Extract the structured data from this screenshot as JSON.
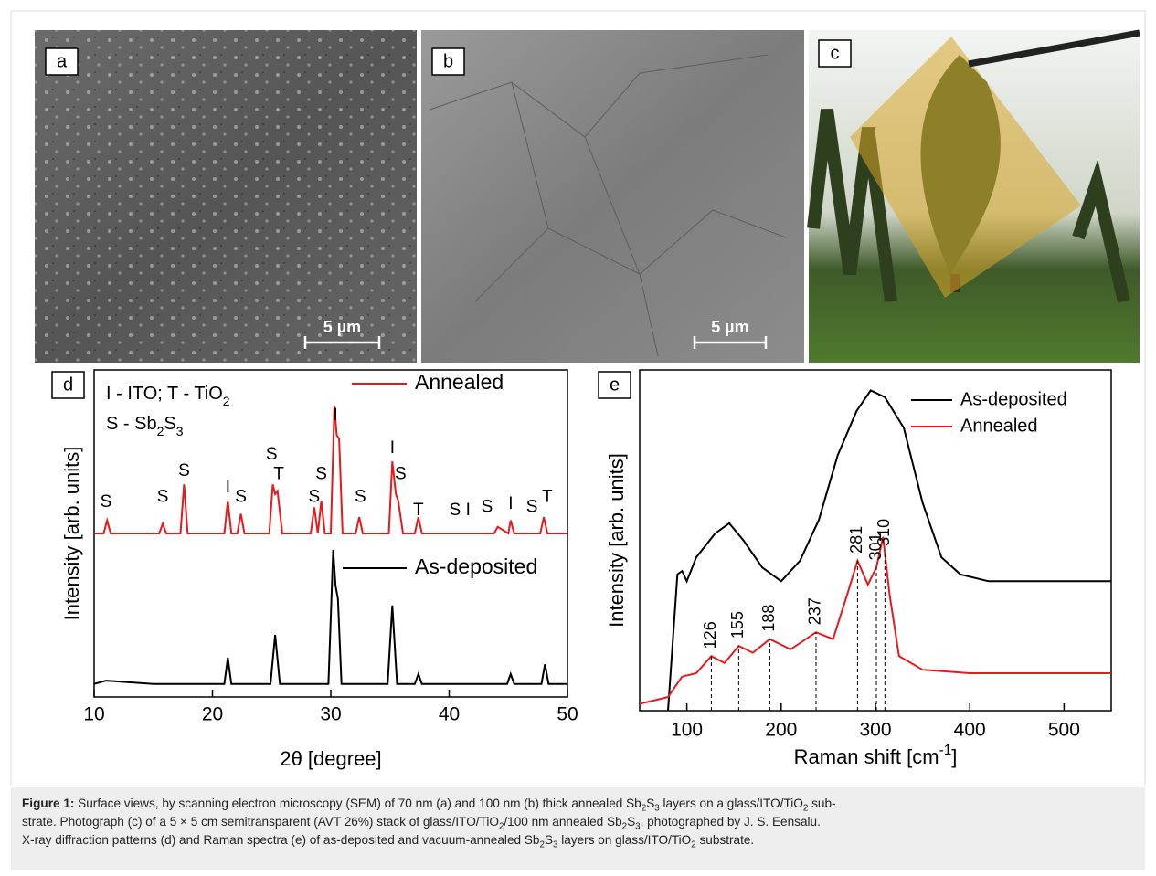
{
  "panels": [
    {
      "label": "a",
      "scale_bar": "5 µm"
    },
    {
      "label": "b",
      "scale_bar": "5 µm"
    },
    {
      "label": "c"
    },
    {
      "label": "d"
    },
    {
      "label": "e"
    }
  ],
  "chart_data": [
    {
      "type": "line",
      "xlabel": [
        {
          "text": "2θ [degree]",
          "style": "normal"
        }
      ],
      "ylabel": "Intensity [arb. units]",
      "xlim": [
        10,
        50
      ],
      "ylim": [
        0,
        100
      ],
      "xticks": [
        10,
        20,
        30,
        40,
        50
      ],
      "series": [
        {
          "name": "Annealed",
          "color": "#e8191c",
          "x": [
            10,
            10.8,
            11.1,
            11.4,
            15.5,
            15.8,
            16.1,
            17.3,
            17.6,
            17.9,
            21.0,
            21.3,
            21.6,
            22.1,
            22.4,
            22.7,
            24.8,
            25.1,
            25.3,
            25.5,
            25.9,
            28.3,
            28.6,
            28.9,
            29.2,
            29.5,
            30.0,
            30.3,
            30.5,
            30.7,
            31.0,
            32.1,
            32.4,
            32.7,
            34.9,
            35.2,
            35.5,
            35.7,
            36.1,
            37.1,
            37.4,
            37.7,
            43.8,
            44.1,
            45.0,
            45.2,
            45.5,
            47.7,
            48.0,
            48.3,
            50
          ],
          "values": [
            50,
            50,
            54,
            50,
            50,
            53,
            50,
            50,
            65,
            50,
            50,
            60,
            50,
            50,
            56,
            50,
            50,
            65,
            62,
            63,
            50,
            50,
            58,
            50,
            60,
            50,
            50,
            89,
            80,
            79,
            50,
            50,
            55,
            50,
            50,
            72,
            62,
            60,
            50,
            50,
            55,
            50,
            50,
            52,
            50,
            54,
            50,
            50,
            55,
            50,
            50
          ]
        },
        {
          "name": "As-deposited",
          "color": "#000000",
          "x": [
            10,
            11,
            15,
            19,
            21,
            21.3,
            21.6,
            24.9,
            25.3,
            25.7,
            29.8,
            30.2,
            30.4,
            30.6,
            30.9,
            34.8,
            35.2,
            35.6,
            37.1,
            37.4,
            37.7,
            44.9,
            45.2,
            45.5,
            47.8,
            48.1,
            48.4,
            50
          ],
          "values": [
            4,
            5,
            4,
            4,
            4,
            12,
            4,
            4,
            19,
            4,
            4,
            45,
            34,
            30,
            4,
            4,
            28,
            4,
            4,
            7,
            4,
            4,
            7,
            4,
            4,
            10,
            4,
            4
          ]
        }
      ],
      "annotations": [
        {
          "text": "S",
          "x": 11,
          "y": 59.5
        },
        {
          "text": "S",
          "x": 15.8,
          "y": 61
        },
        {
          "text": "S",
          "x": 17.6,
          "y": 69
        },
        {
          "text": "I",
          "x": 21.3,
          "y": 64
        },
        {
          "text": "S",
          "x": 22.4,
          "y": 61
        },
        {
          "text": "S",
          "x": 25,
          "y": 74
        },
        {
          "text": "T",
          "x": 25.6,
          "y": 68
        },
        {
          "text": "S",
          "x": 28.6,
          "y": 61
        },
        {
          "text": "S",
          "x": 29.2,
          "y": 68
        },
        {
          "text": "I",
          "x": 30.4,
          "y": 86
        },
        {
          "text": "S",
          "x": 32.5,
          "y": 61
        },
        {
          "text": "I",
          "x": 35.2,
          "y": 76
        },
        {
          "text": "S",
          "x": 35.9,
          "y": 68
        },
        {
          "text": "T",
          "x": 37.4,
          "y": 57
        },
        {
          "text": "S",
          "x": 40.5,
          "y": 57
        },
        {
          "text": "I",
          "x": 41.6,
          "y": 57
        },
        {
          "text": "S",
          "x": 43.2,
          "y": 58
        },
        {
          "text": "I",
          "x": 45.2,
          "y": 59
        },
        {
          "text": "S",
          "x": 47,
          "y": 58
        },
        {
          "text": "T",
          "x": 48.3,
          "y": 61
        }
      ],
      "notes": [
        [
          {
            "text": "I - ITO; T - TiO",
            "style": "normal"
          },
          {
            "text": "2",
            "style": "sub"
          }
        ],
        [
          {
            "text": "S - Sb",
            "style": "normal"
          },
          {
            "text": "2",
            "style": "sub"
          },
          {
            "text": "S",
            "style": "normal"
          },
          {
            "text": "3",
            "style": "sub"
          }
        ]
      ]
    },
    {
      "type": "line",
      "xlabel": [
        {
          "text": "Raman shift [cm",
          "style": "normal"
        },
        {
          "text": "-1",
          "style": "sup"
        },
        {
          "text": "]",
          "style": "normal"
        }
      ],
      "ylabel": "Intensity [arb. units]",
      "xlim": [
        50,
        550
      ],
      "ylim": [
        0,
        100
      ],
      "xticks": [
        100,
        200,
        300,
        400,
        500
      ],
      "legend": "upper right",
      "series": [
        {
          "name": "As-deposited",
          "color": "#000000",
          "x": [
            80,
            90,
            95,
            100,
            110,
            130,
            145,
            160,
            180,
            200,
            220,
            240,
            260,
            280,
            295,
            310,
            330,
            350,
            370,
            390,
            420,
            550
          ],
          "values": [
            0,
            40,
            41,
            38,
            45,
            52,
            55,
            50,
            42,
            38,
            44,
            56,
            75,
            88,
            94,
            92,
            83,
            61,
            45,
            40,
            38,
            38
          ]
        },
        {
          "name": "Annealed",
          "color": "#e8191c",
          "x": [
            50,
            80,
            95,
            110,
            126,
            140,
            155,
            170,
            188,
            210,
            237,
            255,
            270,
            281,
            292,
            301,
            308,
            315,
            325,
            350,
            400,
            550
          ],
          "values": [
            2,
            4,
            10,
            11,
            16,
            14,
            19,
            17,
            21,
            18,
            23,
            21,
            34,
            44,
            37,
            42,
            51,
            34,
            16,
            12,
            11,
            11
          ]
        }
      ],
      "peaks": [
        126,
        155,
        188,
        237,
        281,
        301,
        310
      ]
    }
  ],
  "caption": {
    "lines": [
      [
        {
          "text": "Figure 1:",
          "style": "bold"
        },
        {
          "text": " Surface views, by scanning electron microscopy (SEM) of 70 nm (a) and 100 nm (b) thick annealed Sb",
          "style": "normal"
        },
        {
          "text": "2",
          "style": "sub"
        },
        {
          "text": "S",
          "style": "normal"
        },
        {
          "text": "3",
          "style": "sub"
        },
        {
          "text": " layers on a glass/ITO/TiO",
          "style": "normal"
        },
        {
          "text": "2",
          "style": "sub"
        },
        {
          "text": " sub-",
          "style": "normal"
        }
      ],
      [
        {
          "text": "strate. Photograph (c) of a 5 × 5 cm semitransparent (AVT 26%) stack of glass/ITO/TiO",
          "style": "normal"
        },
        {
          "text": "2",
          "style": "sub"
        },
        {
          "text": "/100 nm annealed Sb",
          "style": "normal"
        },
        {
          "text": "2",
          "style": "sub"
        },
        {
          "text": "S",
          "style": "normal"
        },
        {
          "text": "3",
          "style": "sub"
        },
        {
          "text": ", photographed by J. S. Eensalu.",
          "style": "normal"
        }
      ],
      [
        {
          "text": "X-ray diffraction patterns (d) and Raman spectra (e) of as-deposited and vacuum-annealed Sb",
          "style": "normal"
        },
        {
          "text": "2",
          "style": "sub"
        },
        {
          "text": "S",
          "style": "normal"
        },
        {
          "text": "3",
          "style": "sub"
        },
        {
          "text": " layers on glass/ITO/TiO",
          "style": "normal"
        },
        {
          "text": "2",
          "style": "sub"
        },
        {
          "text": " substrate.",
          "style": "normal"
        }
      ]
    ]
  }
}
